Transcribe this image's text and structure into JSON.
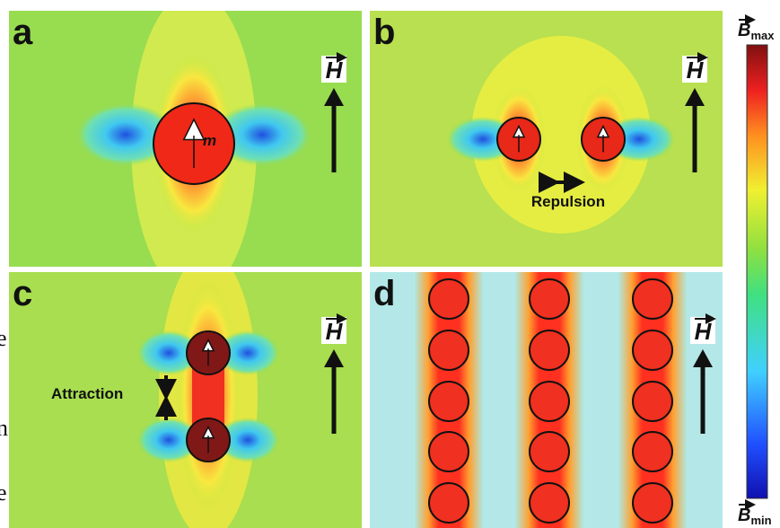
{
  "panels": [
    {
      "letter": "a",
      "field_label": "H",
      "moment_label": "m"
    },
    {
      "letter": "b",
      "field_label": "H",
      "note": "Repulsion"
    },
    {
      "letter": "c",
      "field_label": "H",
      "note": "Attraction"
    },
    {
      "letter": "d",
      "field_label": "H"
    }
  ],
  "colorbar": {
    "max_symbol": "B",
    "max_sub": "max",
    "min_symbol": "B",
    "min_sub": "min"
  },
  "margin_text": [
    "e",
    "n",
    "e"
  ]
}
